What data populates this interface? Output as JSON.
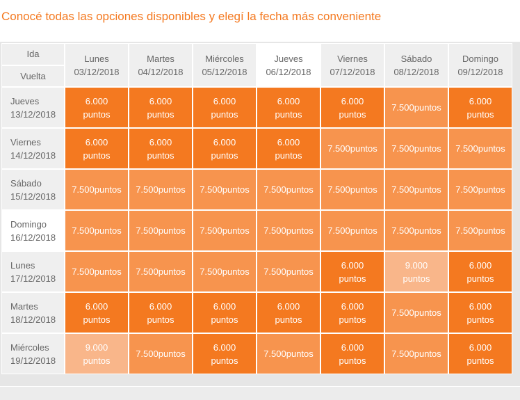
{
  "header": {
    "title": "Conocé todas las opciones disponibles y elegí la fecha más conveniente"
  },
  "table": {
    "corner": {
      "top": "Ida",
      "bottom": "Vuelta"
    },
    "columns": [
      {
        "day": "Lunes",
        "date": "03/12/2018"
      },
      {
        "day": "Martes",
        "date": "04/12/2018"
      },
      {
        "day": "Miércoles",
        "date": "05/12/2018"
      },
      {
        "day": "Jueves",
        "date": "06/12/2018",
        "selected": true
      },
      {
        "day": "Viernes",
        "date": "07/12/2018"
      },
      {
        "day": "Sábado",
        "date": "08/12/2018"
      },
      {
        "day": "Domingo",
        "date": "09/12/2018"
      }
    ],
    "prices": {
      "a": {
        "lines": [
          "6.000",
          "puntos"
        ],
        "color": "#f47920"
      },
      "b": {
        "lines": [
          "7.500puntos"
        ],
        "color": "#f7944e"
      },
      "c": {
        "lines": [
          "9.000",
          "puntos"
        ],
        "color": "#f9b68a"
      }
    },
    "rows": [
      {
        "day": "Jueves",
        "date": "13/12/2018",
        "cells": [
          "a",
          "a",
          "a",
          "a",
          "a",
          "b",
          "a"
        ]
      },
      {
        "day": "Viernes",
        "date": "14/12/2018",
        "cells": [
          "a",
          "a",
          "a",
          "a",
          "b",
          "b",
          "b"
        ]
      },
      {
        "day": "Sábado",
        "date": "15/12/2018",
        "cells": [
          "b",
          "b",
          "b",
          "b",
          "b",
          "b",
          "b"
        ]
      },
      {
        "day": "Domingo",
        "date": "16/12/2018",
        "selected": true,
        "cells": [
          "b",
          "b",
          "b",
          "b",
          "b",
          "b",
          "b"
        ]
      },
      {
        "day": "Lunes",
        "date": "17/12/2018",
        "cells": [
          "b",
          "b",
          "b",
          "b",
          "a",
          "c",
          "a"
        ]
      },
      {
        "day": "Martes",
        "date": "18/12/2018",
        "cells": [
          "a",
          "a",
          "a",
          "a",
          "a",
          "b",
          "a"
        ]
      },
      {
        "day": "Miércoles",
        "date": "19/12/2018",
        "cells": [
          "c",
          "b",
          "a",
          "b",
          "a",
          "b",
          "a"
        ]
      }
    ]
  }
}
